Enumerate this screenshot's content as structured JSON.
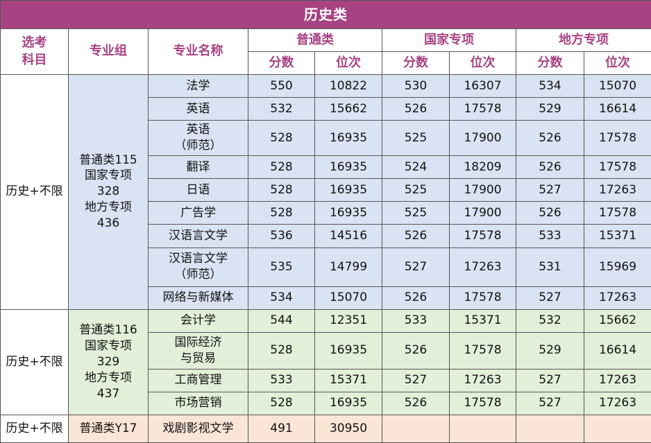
{
  "title": "历史类",
  "headers": {
    "subject": "选考\n科目",
    "group": "专业组",
    "major": "专业名称",
    "ordinary": "普通类",
    "national": "国家专项",
    "local": "地方专项",
    "score": "分数",
    "rank": "位次"
  },
  "groups": [
    {
      "subject": "历史+不限",
      "group_label": "普通类115\n国家专项\n328\n地方专项\n436",
      "rows": [
        {
          "major": "法学",
          "ord_score": "550",
          "ord_rank": "10822",
          "nat_score": "530",
          "nat_rank": "16307",
          "loc_score": "534",
          "loc_rank": "15070"
        },
        {
          "major": "英语",
          "ord_score": "532",
          "ord_rank": "15662",
          "nat_score": "526",
          "nat_rank": "17578",
          "loc_score": "529",
          "loc_rank": "16614"
        },
        {
          "major": "英语\n（师范）",
          "ord_score": "528",
          "ord_rank": "16935",
          "nat_score": "525",
          "nat_rank": "17900",
          "loc_score": "526",
          "loc_rank": "17578"
        },
        {
          "major": "翻译",
          "ord_score": "528",
          "ord_rank": "16935",
          "nat_score": "524",
          "nat_rank": "18209",
          "loc_score": "526",
          "loc_rank": "17578"
        },
        {
          "major": "日语",
          "ord_score": "528",
          "ord_rank": "16935",
          "nat_score": "525",
          "nat_rank": "17900",
          "loc_score": "527",
          "loc_rank": "17263"
        },
        {
          "major": "广告学",
          "ord_score": "528",
          "ord_rank": "16935",
          "nat_score": "525",
          "nat_rank": "17900",
          "loc_score": "526",
          "loc_rank": "17578"
        },
        {
          "major": "汉语言文学",
          "ord_score": "536",
          "ord_rank": "14516",
          "nat_score": "526",
          "nat_rank": "17578",
          "loc_score": "533",
          "loc_rank": "15371"
        },
        {
          "major": "汉语言文学\n（师范）",
          "ord_score": "535",
          "ord_rank": "14799",
          "nat_score": "527",
          "nat_rank": "17263",
          "loc_score": "531",
          "loc_rank": "15969"
        },
        {
          "major": "网络与新媒体",
          "ord_score": "534",
          "ord_rank": "15070",
          "nat_score": "526",
          "nat_rank": "17578",
          "loc_score": "527",
          "loc_rank": "17263"
        }
      ]
    },
    {
      "subject": "历史+不限",
      "group_label": "普通类116\n国家专项\n329\n地方专项\n437",
      "rows": [
        {
          "major": "会计学",
          "ord_score": "544",
          "ord_rank": "12351",
          "nat_score": "533",
          "nat_rank": "15371",
          "loc_score": "532",
          "loc_rank": "15662"
        },
        {
          "major": "国际经济\n与贸易",
          "ord_score": "528",
          "ord_rank": "16935",
          "nat_score": "526",
          "nat_rank": "17578",
          "loc_score": "529",
          "loc_rank": "16614"
        },
        {
          "major": "工商管理",
          "ord_score": "533",
          "ord_rank": "15371",
          "nat_score": "527",
          "nat_rank": "17263",
          "loc_score": "527",
          "loc_rank": "17263"
        },
        {
          "major": "市场营销",
          "ord_score": "528",
          "ord_rank": "16935",
          "nat_score": "526",
          "nat_rank": "17578",
          "loc_score": "527",
          "loc_rank": "17263"
        }
      ]
    },
    {
      "subject": "历史+不限",
      "group_label": "普通类Y17",
      "rows": [
        {
          "major": "戏剧影视文学",
          "ord_score": "491",
          "ord_rank": "30950",
          "nat_score": "",
          "nat_rank": "",
          "loc_score": "",
          "loc_rank": ""
        }
      ]
    }
  ]
}
